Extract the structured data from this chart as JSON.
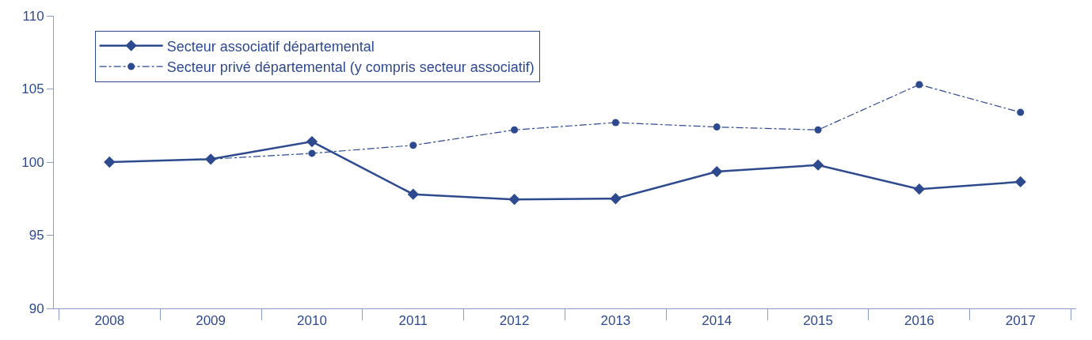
{
  "chart_data": {
    "type": "line",
    "categories": [
      "2008",
      "2009",
      "2010",
      "2011",
      "2012",
      "2013",
      "2014",
      "2015",
      "2016",
      "2017"
    ],
    "series": [
      {
        "name": "Secteur associatif départemental",
        "color": "#2e4a8e",
        "marker": "diamond",
        "line_style": "solid",
        "values": [
          100,
          100.2,
          101.4,
          97.8,
          97.45,
          97.5,
          99.35,
          99.8,
          98.15,
          98.65
        ]
      },
      {
        "name": "Secteur privé départemental (y compris secteur associatif)",
        "color": "#2e4a8e",
        "marker": "circle",
        "line_style": "dashdot",
        "values": [
          null,
          100.2,
          100.6,
          101.15,
          102.2,
          102.7,
          102.4,
          102.2,
          105.3,
          103.4
        ]
      }
    ],
    "ylim": [
      90,
      110
    ],
    "yticks": [
      90,
      95,
      100,
      105,
      110
    ],
    "legend": "top left"
  }
}
